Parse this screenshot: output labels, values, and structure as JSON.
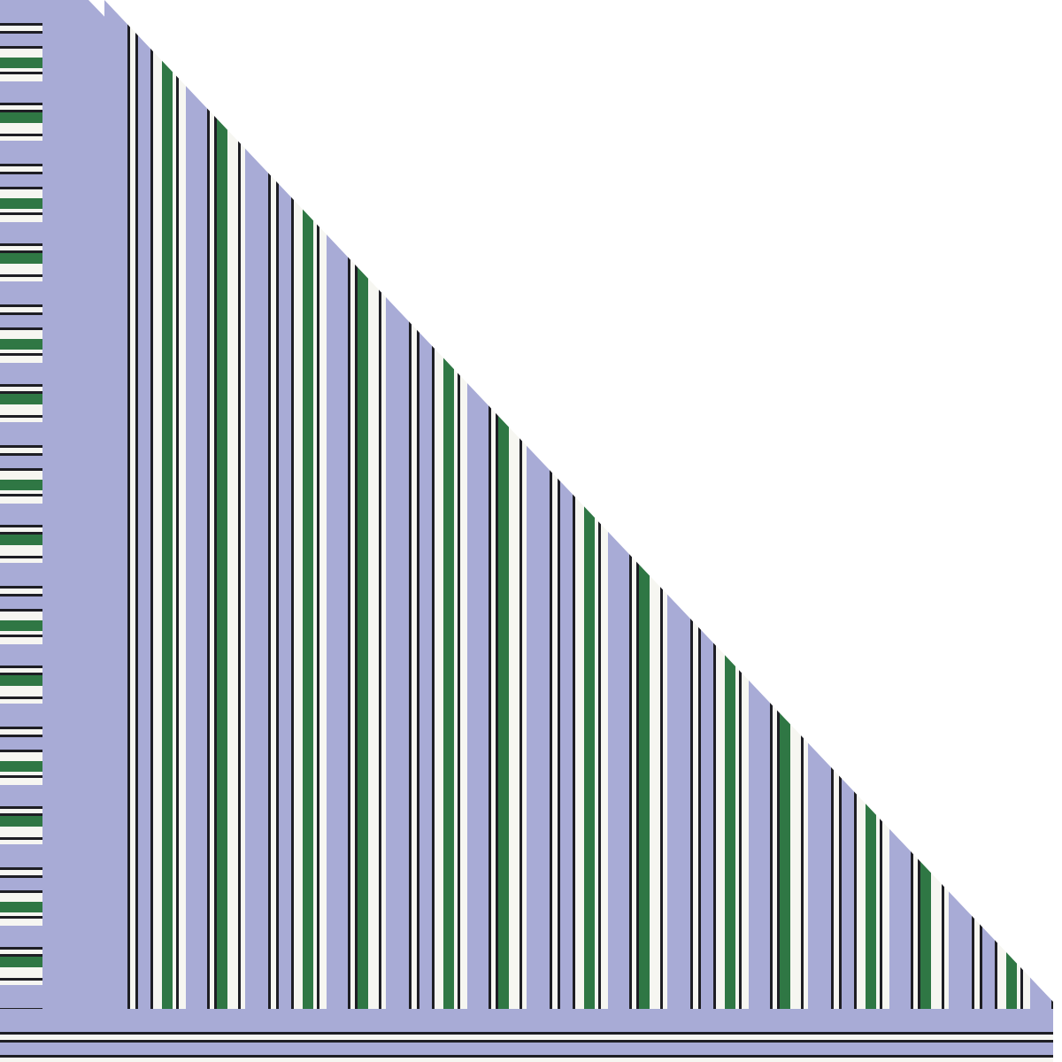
{
  "image": {
    "subject": "folded-striped-rug",
    "colors": {
      "background": "#ffffff",
      "lavender": "#a8abd6",
      "green": "#2f7744",
      "black": "#1e1e24",
      "white": "#f6f6f1"
    }
  }
}
